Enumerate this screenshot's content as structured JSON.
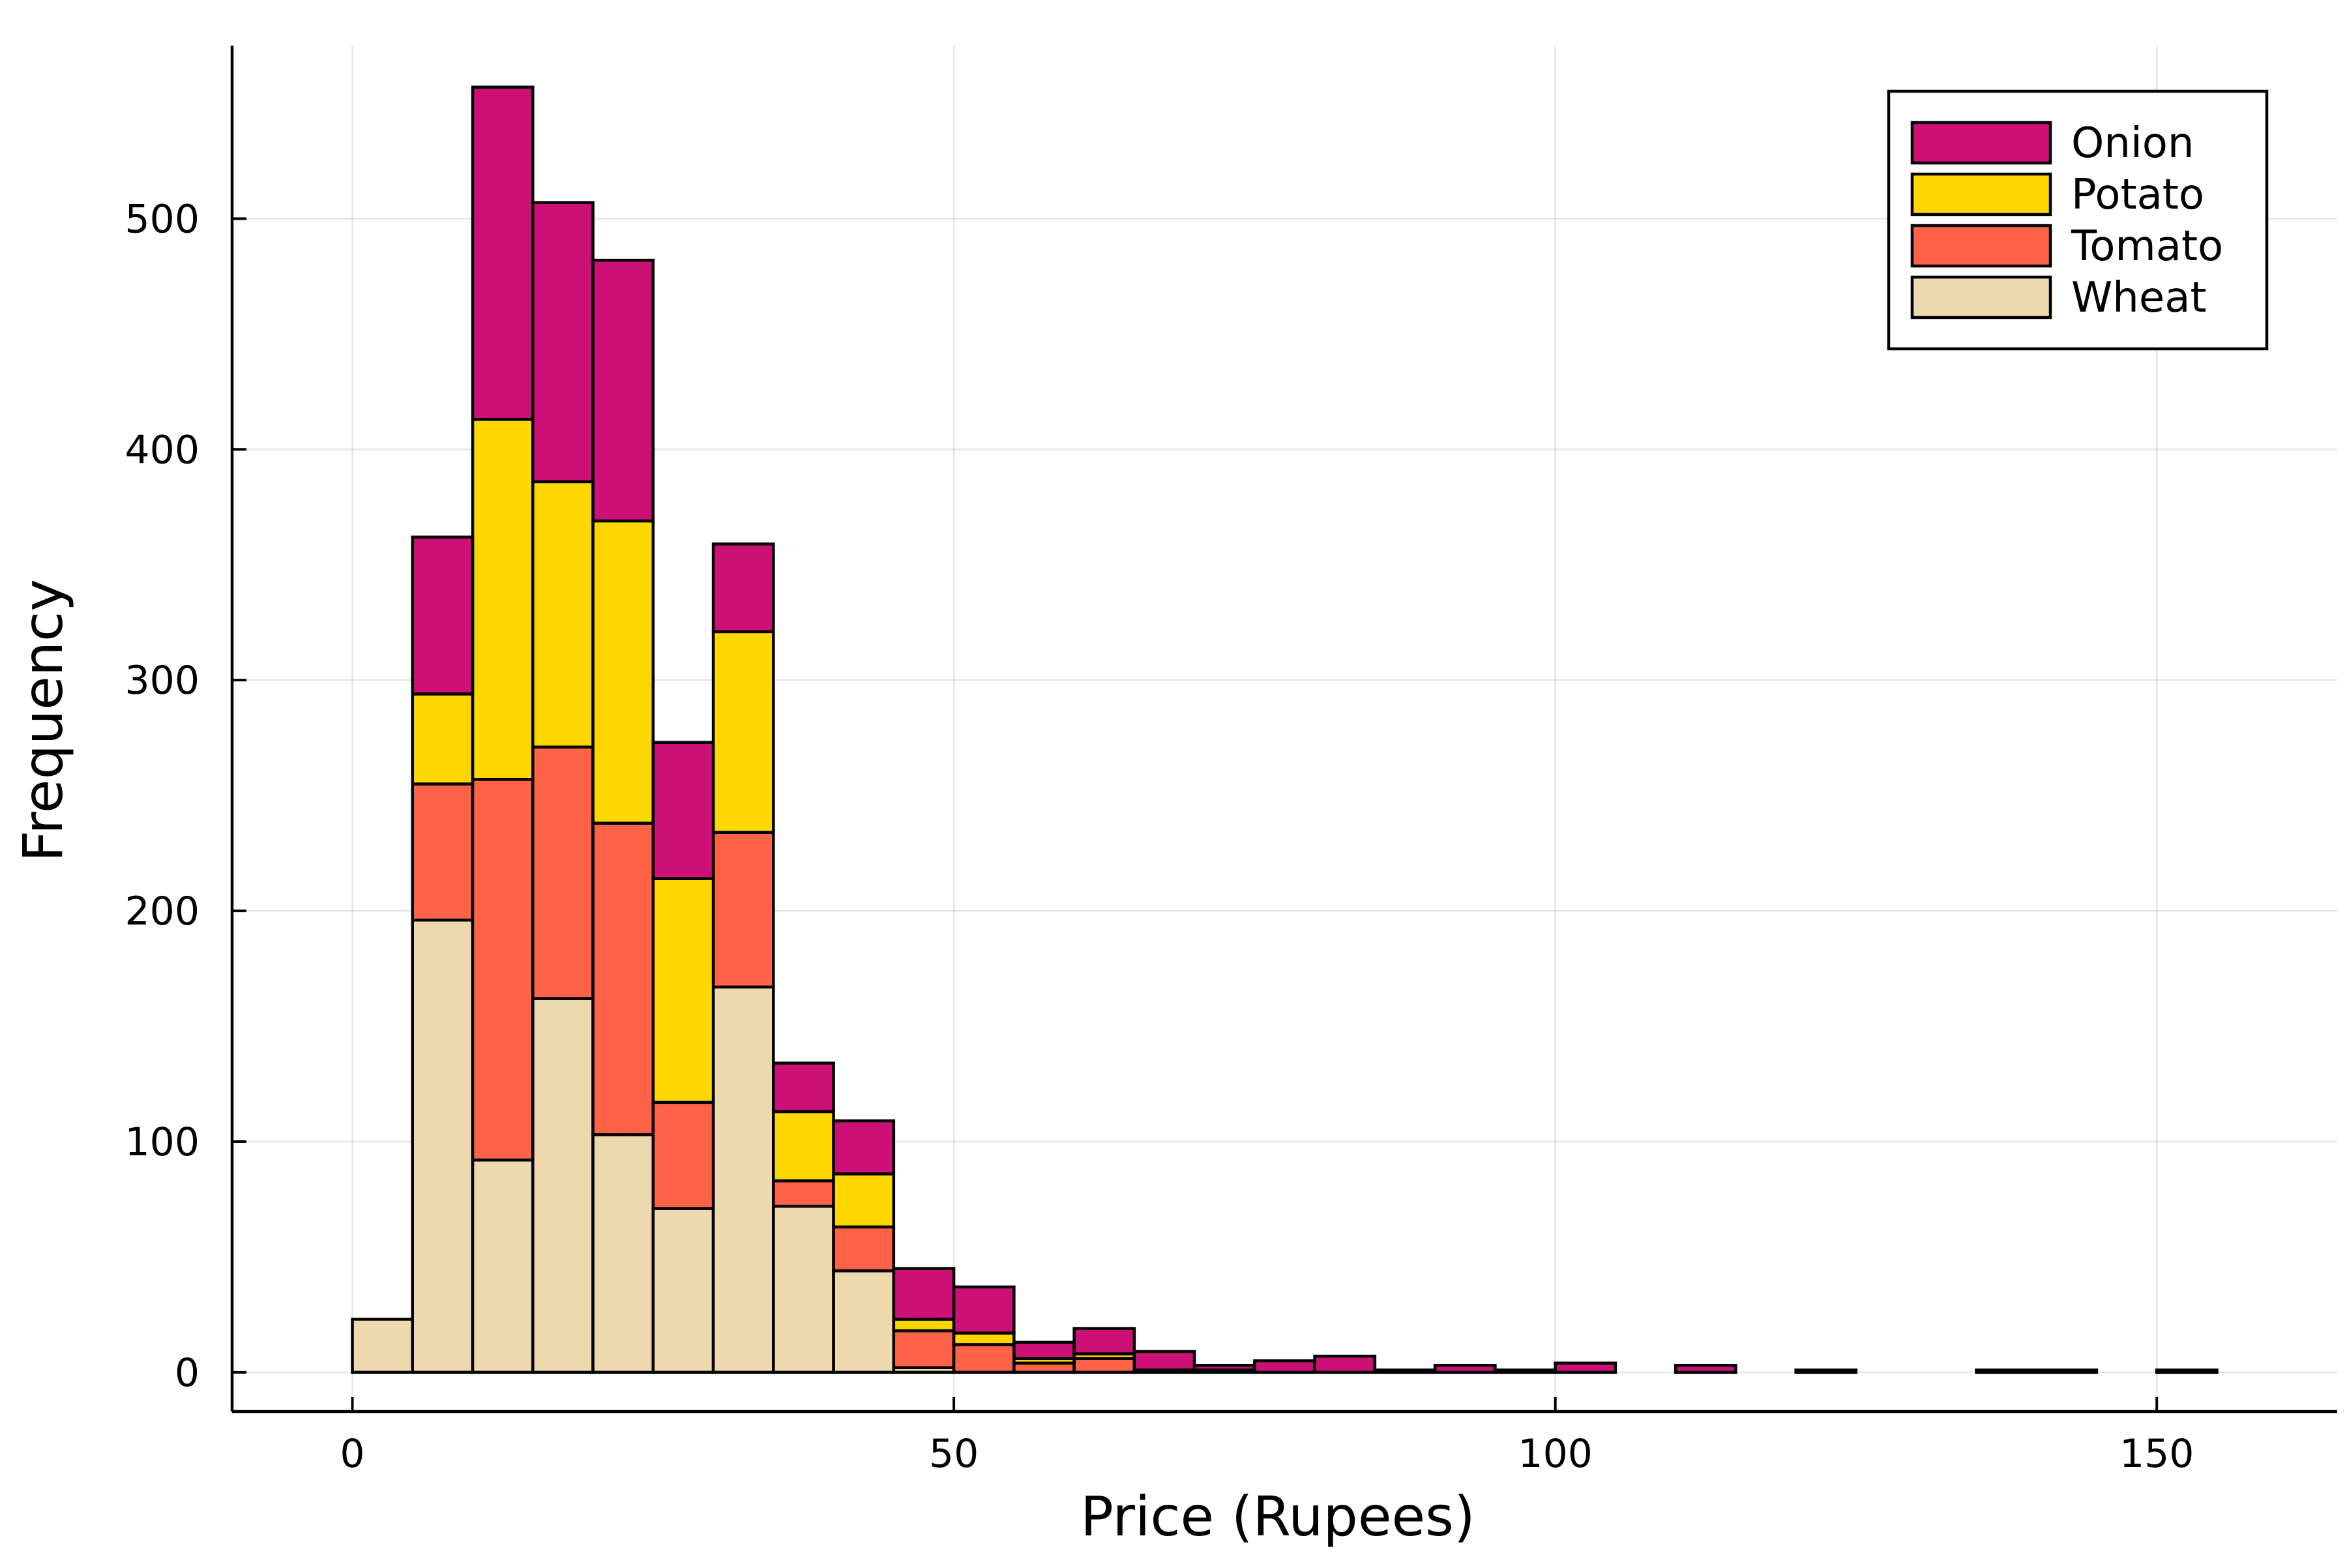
{
  "chart_data": {
    "type": "bar",
    "stacked": true,
    "histogram": true,
    "title": "",
    "xlabel": "Price (Rupees)",
    "ylabel": "Frequency",
    "xlim": [
      -10,
      165
    ],
    "ylim": [
      -17,
      575
    ],
    "bin_width": 5,
    "bin_starts": [
      0,
      5,
      10,
      15,
      20,
      25,
      30,
      35,
      40,
      45,
      50,
      55,
      60,
      65,
      70,
      75,
      80,
      85,
      90,
      95,
      100,
      105,
      110,
      115,
      120,
      125,
      130,
      135,
      140,
      145,
      150
    ],
    "xticks": [
      0,
      50,
      100,
      150
    ],
    "xtick_labels": [
      "0",
      "50",
      "100",
      "150"
    ],
    "yticks": [
      0,
      100,
      200,
      300,
      400,
      500
    ],
    "ytick_labels": [
      "0",
      "100",
      "200",
      "300",
      "400",
      "500"
    ],
    "grid": true,
    "legend_position": "top-right",
    "series": [
      {
        "name": "Wheat",
        "color": "#eed9ae",
        "values": [
          23,
          196,
          92,
          162,
          103,
          71,
          167,
          72,
          44,
          2,
          0,
          0,
          0,
          0,
          0,
          0,
          0,
          0,
          0,
          0,
          0,
          0,
          0,
          0,
          0,
          0,
          0,
          0,
          0,
          0,
          0
        ]
      },
      {
        "name": "Tomato",
        "color": "#ff6347",
        "values": [
          0,
          59,
          165,
          109,
          135,
          46,
          67,
          11,
          19,
          16,
          12,
          4,
          6,
          0,
          0,
          0,
          0,
          0,
          0,
          0,
          0,
          0,
          0,
          0,
          0,
          0,
          0,
          0,
          0,
          0,
          0
        ]
      },
      {
        "name": "Potato",
        "color": "#ffd700",
        "values": [
          0,
          39,
          156,
          115,
          131,
          97,
          87,
          30,
          23,
          5,
          5,
          2,
          2,
          1,
          1,
          0,
          0,
          0,
          0,
          0,
          0,
          0,
          0,
          0,
          0,
          0,
          0,
          0,
          0,
          0,
          0
        ]
      },
      {
        "name": "Onion",
        "color": "#cd1076",
        "values": [
          0,
          68,
          144,
          121,
          113,
          59,
          38,
          21,
          23,
          22,
          20,
          7,
          11,
          8,
          2,
          5,
          7,
          1,
          3,
          1,
          4,
          0,
          3,
          0,
          1,
          0,
          0,
          1,
          1,
          0,
          1
        ]
      }
    ],
    "legend_order": [
      "Onion",
      "Potato",
      "Tomato",
      "Wheat"
    ]
  }
}
